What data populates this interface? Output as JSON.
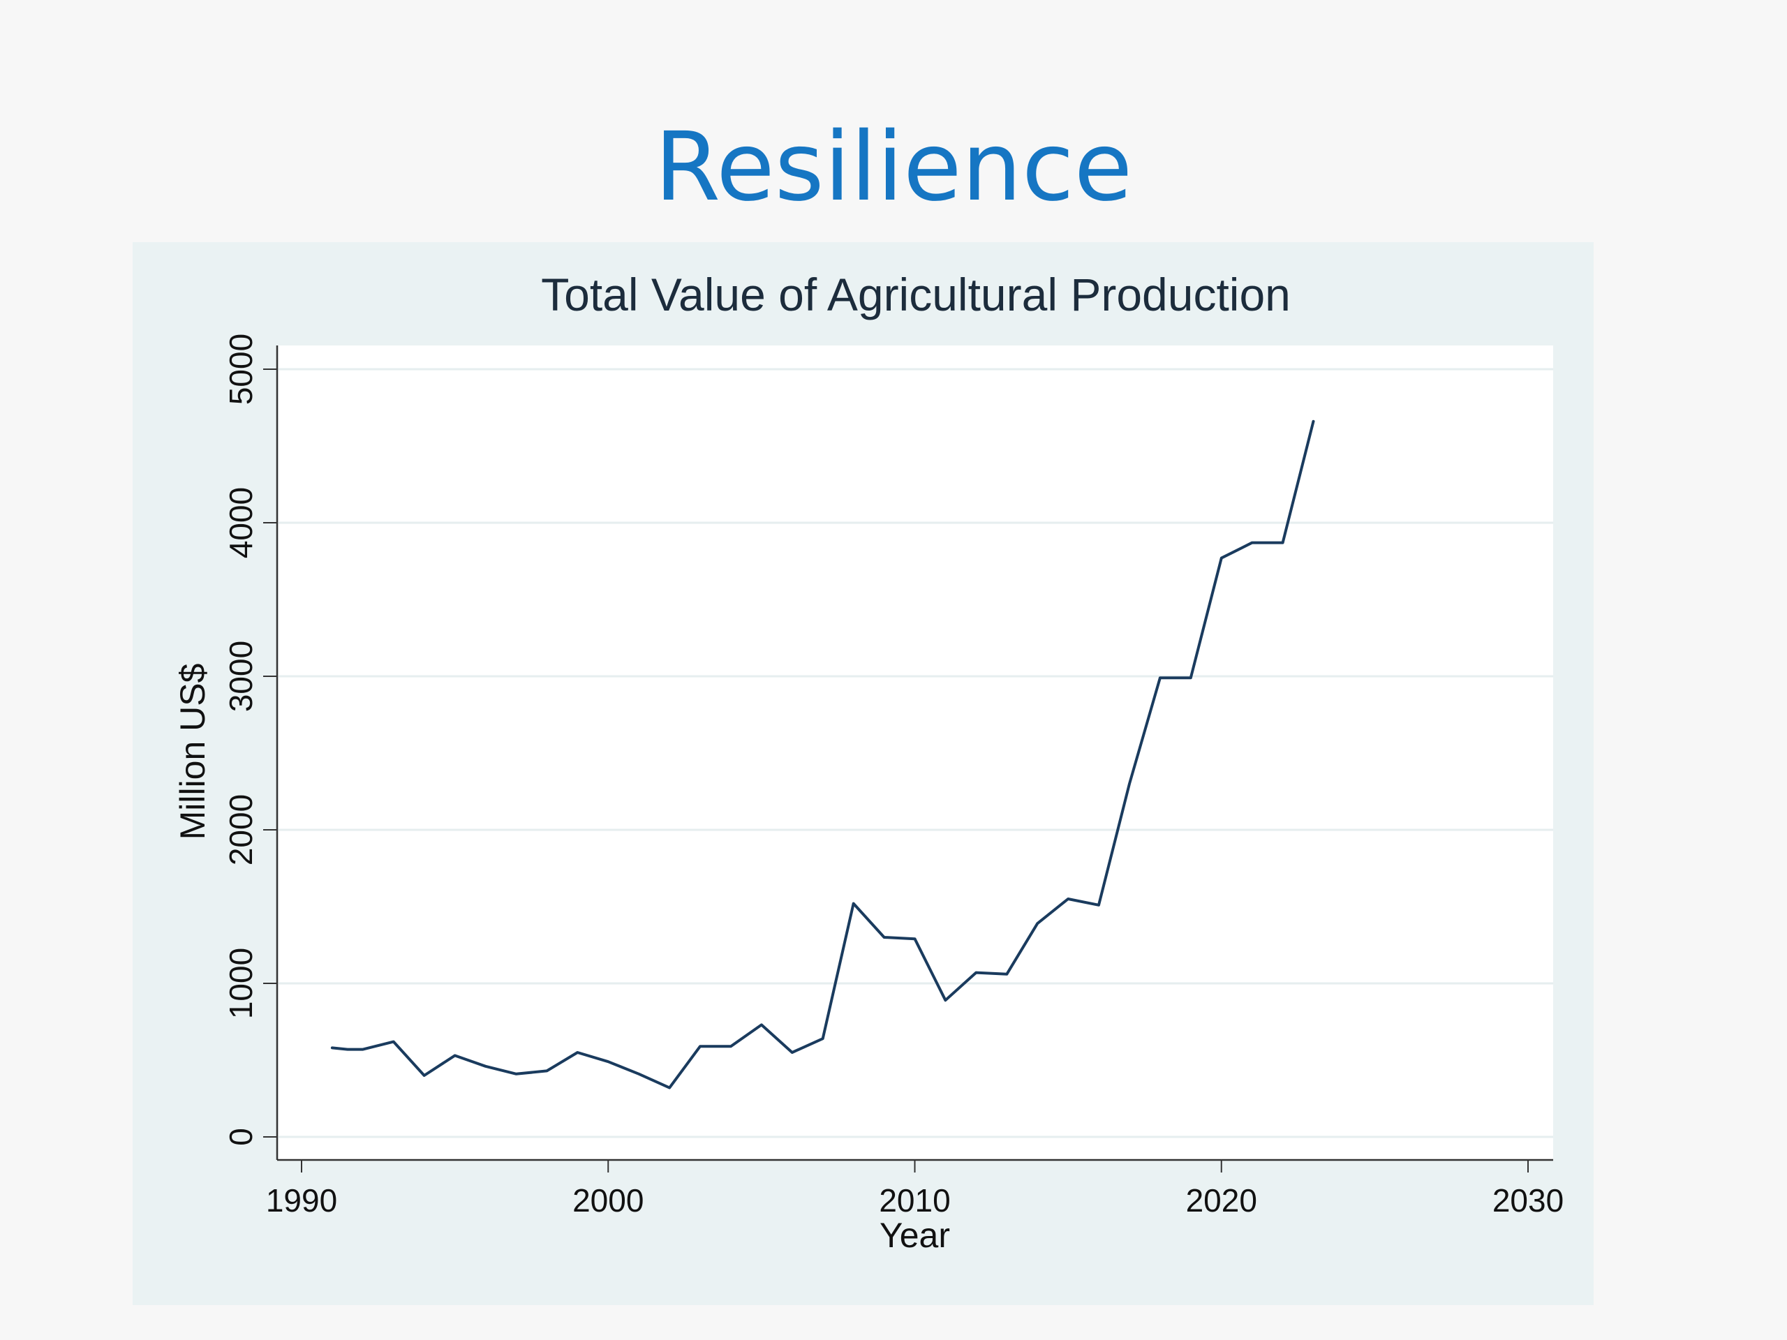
{
  "slide": {
    "title": "Resilience"
  },
  "colors": {
    "slide_title": "#1676c3",
    "panel_background": "#eaf2f3",
    "plot_background": "#ffffff",
    "line": "#1a3b5e",
    "grid": "#e6eeef",
    "axis": "#333333"
  },
  "chart_data": {
    "type": "line",
    "title": "Total Value of Agricultural Production",
    "xlabel": "Year",
    "ylabel": "Million US$",
    "xlim": [
      1990,
      2030
    ],
    "ylim": [
      0,
      5000
    ],
    "xticks": [
      1990,
      2000,
      2010,
      2020,
      2030
    ],
    "yticks": [
      0,
      1000,
      2000,
      3000,
      4000,
      5000
    ],
    "grid": true,
    "x": [
      1991,
      1991.5,
      1992,
      1993,
      1994,
      1995,
      1996,
      1997,
      1998,
      1999,
      2000,
      2001,
      2002,
      2003,
      2004,
      2005,
      2006,
      2007,
      2008,
      2009,
      2010,
      2011,
      2012,
      2013,
      2014,
      2015,
      2016,
      2017,
      2018,
      2019,
      2020,
      2021,
      2022,
      2023
    ],
    "series": [
      {
        "values": [
          580,
          570,
          570,
          620,
          400,
          530,
          460,
          410,
          430,
          550,
          490,
          410,
          320,
          590,
          590,
          730,
          550,
          640,
          1520,
          1300,
          1290,
          890,
          1070,
          1060,
          1390,
          1550,
          1510,
          2300,
          2990,
          2990,
          3770,
          3870,
          3870,
          4660
        ]
      }
    ]
  }
}
